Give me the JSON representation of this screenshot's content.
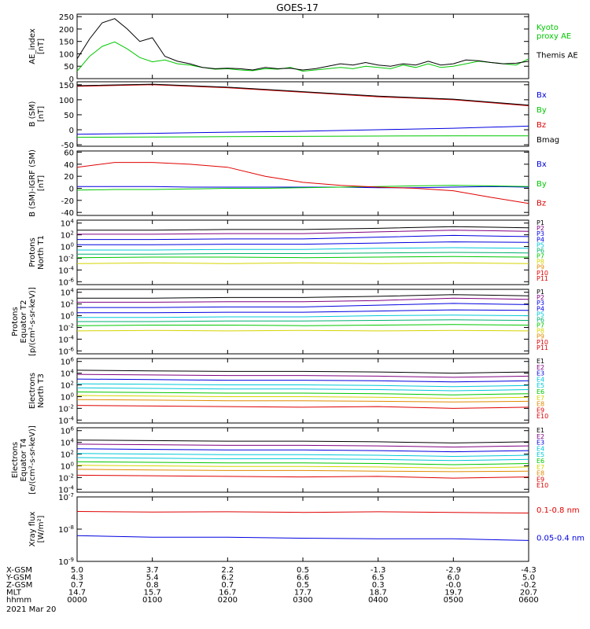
{
  "title": "GOES-17",
  "date_label": "2021 Mar 20",
  "footer": {
    "rows": [
      {
        "label": "X-GSM",
        "values": [
          "5.0",
          "3.7",
          "2.2",
          "0.5",
          "-1.3",
          "-2.9",
          "-4.3"
        ]
      },
      {
        "label": "Y-GSM",
        "values": [
          "4.3",
          "5.4",
          "6.2",
          "6.6",
          "6.5",
          "6.0",
          "5.0"
        ]
      },
      {
        "label": "Z-GSM",
        "values": [
          "0.7",
          "0.8",
          "0.7",
          "0.5",
          "0.3",
          "-0.0",
          "-0.2"
        ]
      },
      {
        "label": "MLT",
        "values": [
          "14.7",
          "15.7",
          "16.7",
          "17.7",
          "18.7",
          "19.7",
          "20.7"
        ]
      },
      {
        "label": "hhmm",
        "values": [
          "0000",
          "0100",
          "0200",
          "0300",
          "0400",
          "0500",
          "0600"
        ]
      }
    ]
  },
  "colors": {
    "black": "#000000",
    "red": "#e00000",
    "green": "#00c800",
    "blue": "#0000e0",
    "yellow": "#d4d400",
    "orange": "#e08a00",
    "cyan": "#00c8d8",
    "teal": "#00b070",
    "purple": "#800080",
    "magenta": "#c000a0"
  },
  "chart_data": [
    {
      "type": "line",
      "ylabel": "AE_index\n[nT]",
      "ylim": [
        0,
        260
      ],
      "yscale": "linear",
      "yticks": [
        "0",
        "50",
        "100",
        "150",
        "200",
        "250"
      ],
      "x": [
        "0000",
        "0010",
        "0020",
        "0030",
        "0040",
        "0050",
        "0100",
        "0110",
        "0120",
        "0130",
        "0140",
        "0150",
        "0200",
        "0210",
        "0220",
        "0230",
        "0240",
        "0250",
        "0300",
        "0310",
        "0320",
        "0330",
        "0340",
        "0350",
        "0400",
        "0410",
        "0420",
        "0430",
        "0440",
        "0450",
        "0500",
        "0510",
        "0520",
        "0530",
        "0540",
        "0550",
        "0600"
      ],
      "series": [
        {
          "name": "Kyoto\nproxy AE",
          "color": "green",
          "values": [
            30,
            90,
            130,
            148,
            120,
            85,
            68,
            75,
            60,
            55,
            45,
            38,
            40,
            35,
            32,
            40,
            38,
            45,
            30,
            35,
            40,
            45,
            40,
            50,
            45,
            40,
            55,
            45,
            60,
            45,
            50,
            60,
            70,
            65,
            60,
            55,
            80
          ]
        },
        {
          "name": "Themis AE",
          "color": "black",
          "values": [
            80,
            160,
            225,
            242,
            200,
            150,
            165,
            90,
            70,
            60,
            45,
            40,
            42,
            40,
            35,
            45,
            40,
            42,
            35,
            40,
            50,
            60,
            55,
            65,
            55,
            50,
            60,
            55,
            70,
            55,
            60,
            75,
            72,
            65,
            60,
            62,
            70
          ]
        }
      ]
    },
    {
      "type": "line",
      "ylabel": "B (SM)\n[nT]",
      "ylim": [
        -55,
        160
      ],
      "yscale": "linear",
      "yticks": [
        "-50",
        "0",
        "50",
        "100",
        "150"
      ],
      "x": [
        "0000",
        "0100",
        "0200",
        "0300",
        "0400",
        "0500",
        "0600"
      ],
      "series": [
        {
          "name": "Bx",
          "color": "blue",
          "values": [
            -15,
            -12,
            -8,
            -5,
            0,
            5,
            12
          ]
        },
        {
          "name": "By",
          "color": "green",
          "values": [
            -25,
            -24,
            -23,
            -22,
            -21,
            -20,
            -20
          ]
        },
        {
          "name": "Bz",
          "color": "red",
          "values": [
            145,
            150,
            140,
            125,
            110,
            100,
            80
          ]
        },
        {
          "name": "Bmag",
          "color": "black",
          "values": [
            147,
            152,
            142,
            127,
            112,
            102,
            82
          ]
        }
      ]
    },
    {
      "type": "line",
      "ylabel": "B (SM)-IGRF (SM)\n[nT]",
      "ylim": [
        -45,
        62
      ],
      "yscale": "linear",
      "yticks": [
        "-40",
        "-20",
        "0",
        "20",
        "40",
        "60"
      ],
      "x": [
        "0000",
        "0030",
        "0100",
        "0130",
        "0200",
        "0230",
        "0300",
        "0330",
        "0400",
        "0430",
        "0500",
        "0530",
        "0600"
      ],
      "series": [
        {
          "name": "Bx",
          "color": "blue",
          "values": [
            3,
            3,
            3,
            2,
            2,
            2,
            2,
            2,
            1,
            1,
            2,
            3,
            2
          ]
        },
        {
          "name": "By",
          "color": "green",
          "values": [
            -3,
            -2,
            -2,
            -1,
            0,
            0,
            1,
            2,
            3,
            4,
            5,
            4,
            3
          ]
        },
        {
          "name": "Bz",
          "color": "red",
          "values": [
            35,
            43,
            43,
            40,
            35,
            20,
            10,
            5,
            2,
            0,
            -4,
            -15,
            -25
          ]
        }
      ]
    },
    {
      "type": "line",
      "ylabel": "Protons\nNorth T1",
      "yscale": "log",
      "ylim_exp": [
        -6.5,
        4.5
      ],
      "yticks": [
        "10^-6",
        "10^-4",
        "10^-2",
        "10^0",
        "10^2",
        "10^4"
      ],
      "x": [
        "0000",
        "0100",
        "0200",
        "0300",
        "0400",
        "0500",
        "0600"
      ],
      "series": [
        {
          "name": "P1",
          "color": "black",
          "values_exp": [
            2.8,
            2.8,
            2.9,
            2.9,
            3.1,
            3.4,
            3.2
          ]
        },
        {
          "name": "P2",
          "color": "purple",
          "values_exp": [
            2.1,
            2.1,
            2.2,
            2.2,
            2.5,
            2.8,
            2.6
          ]
        },
        {
          "name": "P3",
          "color": "blue",
          "values_exp": [
            1.2,
            1.2,
            1.3,
            1.3,
            1.6,
            1.9,
            1.7
          ]
        },
        {
          "name": "P4",
          "color": "blue",
          "values_exp": [
            0.3,
            0.3,
            0.4,
            0.4,
            0.6,
            0.8,
            0.7
          ]
        },
        {
          "name": "P5",
          "color": "cyan",
          "values_exp": [
            -0.6,
            -0.6,
            -0.5,
            -0.5,
            -0.3,
            -0.2,
            -0.3
          ]
        },
        {
          "name": "P6",
          "color": "teal",
          "values_exp": [
            -1.3,
            -1.3,
            -1.2,
            -1.2,
            -1.1,
            -1.0,
            -1.1
          ]
        },
        {
          "name": "P7",
          "color": "green",
          "values_exp": [
            -1.9,
            -1.8,
            -1.8,
            -1.9,
            -1.8,
            -1.7,
            -1.8
          ]
        },
        {
          "name": "P8",
          "color": "yellow",
          "values_exp": [
            -2.9,
            -2.8,
            -2.9,
            -2.8,
            -2.9,
            -2.8,
            -2.9
          ]
        },
        {
          "name": "P9",
          "color": "orange",
          "values_exp": [
            null,
            null,
            null,
            null,
            null,
            null,
            null
          ]
        },
        {
          "name": "P10",
          "color": "red",
          "values_exp": [
            null,
            null,
            null,
            null,
            null,
            null,
            null
          ]
        },
        {
          "name": "P11",
          "color": "red",
          "values_exp": [
            null,
            null,
            null,
            null,
            null,
            null,
            null
          ]
        }
      ]
    },
    {
      "type": "line",
      "ylabel": "Protons\nEquator T2\n[p/(cm²-s-sr-keV)]",
      "yscale": "log",
      "ylim_exp": [
        -6.5,
        4.5
      ],
      "yticks": [
        "10^-6",
        "10^-4",
        "10^-2",
        "10^0",
        "10^2",
        "10^4"
      ],
      "x": [
        "0000",
        "0100",
        "0200",
        "0300",
        "0400",
        "0500",
        "0600"
      ],
      "series": [
        {
          "name": "P1",
          "color": "black",
          "values_exp": [
            3.0,
            3.0,
            3.1,
            3.1,
            3.3,
            3.6,
            3.4
          ]
        },
        {
          "name": "P2",
          "color": "purple",
          "values_exp": [
            2.3,
            2.3,
            2.4,
            2.4,
            2.6,
            3.0,
            2.8
          ]
        },
        {
          "name": "P3",
          "color": "blue",
          "values_exp": [
            1.4,
            1.4,
            1.5,
            1.5,
            1.8,
            2.1,
            1.9
          ]
        },
        {
          "name": "P4",
          "color": "blue",
          "values_exp": [
            0.5,
            0.5,
            0.6,
            0.6,
            0.8,
            1.0,
            0.9
          ]
        },
        {
          "name": "P5",
          "color": "cyan",
          "values_exp": [
            -0.3,
            -0.3,
            -0.2,
            -0.2,
            0.0,
            0.1,
            0.0
          ]
        },
        {
          "name": "P6",
          "color": "teal",
          "values_exp": [
            -1.0,
            -1.0,
            -0.9,
            -0.9,
            -0.8,
            -0.7,
            -0.8
          ]
        },
        {
          "name": "P7",
          "color": "green",
          "values_exp": [
            -1.7,
            -1.6,
            -1.6,
            -1.7,
            -1.6,
            -1.5,
            -1.6
          ]
        },
        {
          "name": "P8",
          "color": "yellow",
          "values_exp": [
            -2.6,
            -2.5,
            -2.6,
            -2.5,
            -2.6,
            -2.5,
            -2.6
          ]
        },
        {
          "name": "P9",
          "color": "orange",
          "values_exp": [
            null,
            null,
            null,
            null,
            null,
            null,
            null
          ]
        },
        {
          "name": "P10",
          "color": "red",
          "values_exp": [
            null,
            null,
            null,
            null,
            null,
            null,
            null
          ]
        },
        {
          "name": "P11",
          "color": "red",
          "values_exp": [
            null,
            null,
            null,
            null,
            null,
            null,
            null
          ]
        }
      ]
    },
    {
      "type": "line",
      "ylabel": "Electrons\nNorth T3",
      "yscale": "log",
      "ylim_exp": [
        -4.5,
        6.5
      ],
      "yticks": [
        "10^-4",
        "10^-2",
        "10^0",
        "10^2",
        "10^4",
        "10^6"
      ],
      "x": [
        "0000",
        "0100",
        "0200",
        "0300",
        "0400",
        "0500",
        "0600"
      ],
      "series": [
        {
          "name": "E1",
          "color": "black",
          "values_exp": [
            4.5,
            4.4,
            4.3,
            4.3,
            4.2,
            4.0,
            4.2
          ]
        },
        {
          "name": "E2",
          "color": "purple",
          "values_exp": [
            3.8,
            3.7,
            3.6,
            3.6,
            3.5,
            3.3,
            3.5
          ]
        },
        {
          "name": "E3",
          "color": "blue",
          "values_exp": [
            3.0,
            2.9,
            2.8,
            2.8,
            2.7,
            2.5,
            2.7
          ]
        },
        {
          "name": "E4",
          "color": "cyan",
          "values_exp": [
            2.2,
            2.1,
            2.0,
            2.0,
            1.9,
            1.7,
            1.9
          ]
        },
        {
          "name": "E5",
          "color": "cyan",
          "values_exp": [
            1.5,
            1.4,
            1.3,
            1.3,
            1.2,
            1.0,
            1.2
          ]
        },
        {
          "name": "E6",
          "color": "green",
          "values_exp": [
            0.8,
            0.7,
            0.6,
            0.6,
            0.5,
            0.3,
            0.5
          ]
        },
        {
          "name": "E7",
          "color": "yellow",
          "values_exp": [
            0.2,
            0.1,
            0.0,
            0.0,
            -0.1,
            -0.3,
            -0.1
          ]
        },
        {
          "name": "E8",
          "color": "orange",
          "values_exp": [
            -0.5,
            -0.6,
            -0.7,
            -0.7,
            -0.8,
            -0.9,
            -0.8
          ]
        },
        {
          "name": "E9",
          "color": "red",
          "values_exp": [
            -1.5,
            -1.6,
            -1.7,
            -1.8,
            -1.7,
            -2.0,
            -1.8
          ]
        },
        {
          "name": "E10",
          "color": "red",
          "values_exp": [
            null,
            null,
            null,
            null,
            null,
            null,
            null
          ]
        }
      ]
    },
    {
      "type": "line",
      "ylabel": "Electrons\nEquator T4\n[e/(cm²-s-sr-keV)]",
      "yscale": "log",
      "ylim_exp": [
        -4.5,
        6.5
      ],
      "yticks": [
        "10^-4",
        "10^-2",
        "10^0",
        "10^2",
        "10^4",
        "10^6"
      ],
      "x": [
        "0000",
        "0100",
        "0200",
        "0300",
        "0400",
        "0500",
        "0600"
      ],
      "series": [
        {
          "name": "E1",
          "color": "black",
          "values_exp": [
            4.4,
            4.3,
            4.2,
            4.2,
            4.1,
            3.9,
            4.1
          ]
        },
        {
          "name": "E2",
          "color": "purple",
          "values_exp": [
            3.7,
            3.6,
            3.5,
            3.5,
            3.4,
            3.2,
            3.4
          ]
        },
        {
          "name": "E3",
          "color": "blue",
          "values_exp": [
            2.9,
            2.8,
            2.7,
            2.7,
            2.6,
            2.4,
            2.6
          ]
        },
        {
          "name": "E4",
          "color": "cyan",
          "values_exp": [
            2.1,
            2.0,
            1.9,
            1.9,
            1.8,
            1.6,
            1.8
          ]
        },
        {
          "name": "E5",
          "color": "cyan",
          "values_exp": [
            1.4,
            1.3,
            1.2,
            1.2,
            1.1,
            0.9,
            1.1
          ]
        },
        {
          "name": "E6",
          "color": "green",
          "values_exp": [
            0.7,
            0.6,
            0.5,
            0.5,
            0.4,
            0.2,
            0.4
          ]
        },
        {
          "name": "E7",
          "color": "yellow",
          "values_exp": [
            0.1,
            0.0,
            -0.1,
            -0.1,
            -0.2,
            -0.4,
            -0.2
          ]
        },
        {
          "name": "E8",
          "color": "orange",
          "values_exp": [
            -0.6,
            -0.7,
            -0.8,
            -0.8,
            -0.9,
            -1.0,
            -0.9
          ]
        },
        {
          "name": "E9",
          "color": "red",
          "values_exp": [
            -1.6,
            -1.7,
            -1.8,
            -1.9,
            -1.8,
            -2.1,
            -1.9
          ]
        },
        {
          "name": "E10",
          "color": "red",
          "values_exp": [
            null,
            null,
            null,
            null,
            null,
            null,
            null
          ]
        }
      ]
    },
    {
      "type": "line",
      "ylabel": "Xray flux\n[W/m²]",
      "yscale": "log",
      "ylim_exp": [
        -9,
        -7
      ],
      "yticks": [
        "10^-9",
        "10^-8",
        "10^-7"
      ],
      "x": [
        "0000",
        "0100",
        "0200",
        "0300",
        "0400",
        "0500",
        "0600"
      ],
      "series": [
        {
          "name": "0.1-0.8 nm",
          "color": "red",
          "values_exp": [
            -7.45,
            -7.47,
            -7.46,
            -7.48,
            -7.46,
            -7.48,
            -7.5
          ]
        },
        {
          "name": "0.05-0.4 nm",
          "color": "blue",
          "values_exp": [
            -8.2,
            -8.25,
            -8.25,
            -8.28,
            -8.3,
            -8.3,
            -8.35
          ]
        }
      ]
    }
  ]
}
